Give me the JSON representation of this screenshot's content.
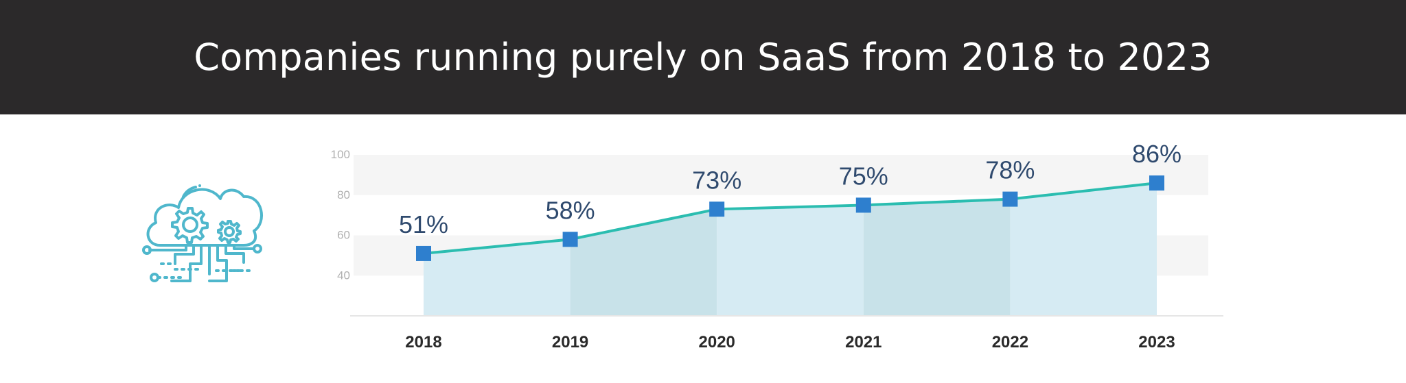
{
  "header": {
    "title": "Companies running purely on SaaS from 2018 to 2023"
  },
  "icon": {
    "name": "cloud-gears-circuit-icon",
    "color": "#4fb7cc"
  },
  "colors": {
    "line": "#2bbdb0",
    "marker": "#2e7fce",
    "area_light": "#d6ebf3",
    "area_dark": "#c8e2e9",
    "band": "#f5f5f5",
    "value_label": "#2f4a6e",
    "tick_label": "#2a2a2a",
    "y_tick_label": "#b0b0b0",
    "baseline": "#e6e6e6"
  },
  "chart_data": {
    "type": "area",
    "categories": [
      "2018",
      "2019",
      "2020",
      "2021",
      "2022",
      "2023"
    ],
    "values": [
      51,
      58,
      73,
      75,
      78,
      86
    ],
    "labels": [
      "51%",
      "58%",
      "73%",
      "75%",
      "78%",
      "86%"
    ],
    "yticks": [
      100,
      80,
      60,
      40
    ],
    "ylim": [
      20,
      100
    ],
    "grid": "alternating bands"
  }
}
